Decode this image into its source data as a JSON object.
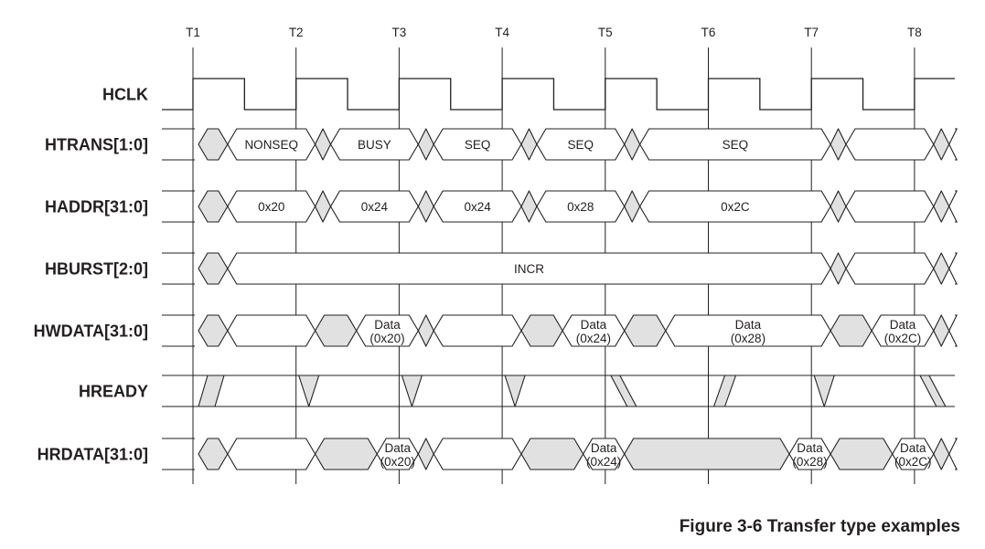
{
  "figure": {
    "caption": "Figure 3-6 Transfer type examples",
    "clock_edges": [
      "T1",
      "T2",
      "T3",
      "T4",
      "T5",
      "T6",
      "T7",
      "T8"
    ],
    "colors": {
      "line": "#231f20",
      "shade": "#e1e1e1",
      "background": "#ffffff"
    }
  },
  "signals": [
    {
      "id": "hclk",
      "name": "HCLK",
      "kind": "clock",
      "periods": 7.4
    },
    {
      "id": "htrans",
      "name": "HTRANS[1:0]",
      "kind": "bus",
      "segments": [
        {
          "from": 0,
          "to": 0.3,
          "fill": "shaded"
        },
        {
          "from": 0.3,
          "to": 1.15,
          "fill": "open",
          "text": "NONSEQ"
        },
        {
          "from": 1.15,
          "to": 1.3,
          "fill": "shaded"
        },
        {
          "from": 1.3,
          "to": 2.15,
          "fill": "open",
          "text": "BUSY"
        },
        {
          "from": 2.15,
          "to": 2.3,
          "fill": "shaded"
        },
        {
          "from": 2.3,
          "to": 3.15,
          "fill": "open",
          "text": "SEQ"
        },
        {
          "from": 3.15,
          "to": 3.3,
          "fill": "shaded"
        },
        {
          "from": 3.3,
          "to": 4.15,
          "fill": "open",
          "text": "SEQ"
        },
        {
          "from": 4.15,
          "to": 4.3,
          "fill": "shaded"
        },
        {
          "from": 4.3,
          "to": 6.15,
          "fill": "open",
          "text": "SEQ"
        },
        {
          "from": 6.15,
          "to": 6.3,
          "fill": "shaded"
        },
        {
          "from": 6.3,
          "to": 7.15,
          "fill": "open"
        },
        {
          "from": 7.15,
          "to": 7.3,
          "fill": "shaded"
        }
      ]
    },
    {
      "id": "haddr",
      "name": "HADDR[31:0]",
      "kind": "bus",
      "segments": [
        {
          "from": 0,
          "to": 0.3,
          "fill": "shaded"
        },
        {
          "from": 0.3,
          "to": 1.15,
          "fill": "open",
          "text": "0x20"
        },
        {
          "from": 1.15,
          "to": 1.3,
          "fill": "shaded"
        },
        {
          "from": 1.3,
          "to": 2.15,
          "fill": "open",
          "text": "0x24"
        },
        {
          "from": 2.15,
          "to": 2.3,
          "fill": "shaded"
        },
        {
          "from": 2.3,
          "to": 3.15,
          "fill": "open",
          "text": "0x24"
        },
        {
          "from": 3.15,
          "to": 3.3,
          "fill": "shaded"
        },
        {
          "from": 3.3,
          "to": 4.15,
          "fill": "open",
          "text": "0x28"
        },
        {
          "from": 4.15,
          "to": 4.3,
          "fill": "shaded"
        },
        {
          "from": 4.3,
          "to": 6.15,
          "fill": "open",
          "text": "0x2C"
        },
        {
          "from": 6.15,
          "to": 6.3,
          "fill": "shaded"
        },
        {
          "from": 6.3,
          "to": 7.15,
          "fill": "open"
        },
        {
          "from": 7.15,
          "to": 7.3,
          "fill": "shaded"
        }
      ]
    },
    {
      "id": "hburst",
      "name": "HBURST[2:0]",
      "kind": "bus",
      "segments": [
        {
          "from": 0,
          "to": 0.3,
          "fill": "shaded"
        },
        {
          "from": 0.3,
          "to": 6.15,
          "fill": "open",
          "text": "INCR"
        },
        {
          "from": 6.15,
          "to": 6.3,
          "fill": "shaded"
        },
        {
          "from": 6.3,
          "to": 7.15,
          "fill": "open"
        },
        {
          "from": 7.15,
          "to": 7.3,
          "fill": "shaded"
        }
      ]
    },
    {
      "id": "hwdata",
      "name": "HWDATA[31:0]",
      "kind": "bus",
      "segments": [
        {
          "from": 0,
          "to": 0.3,
          "fill": "shaded"
        },
        {
          "from": 0.3,
          "to": 1.15,
          "fill": "open"
        },
        {
          "from": 1.15,
          "to": 1.55,
          "fill": "shaded"
        },
        {
          "from": 1.55,
          "to": 2.15,
          "fill": "open",
          "text": "Data",
          "text2": "(0x20)"
        },
        {
          "from": 2.15,
          "to": 2.3,
          "fill": "shaded"
        },
        {
          "from": 2.3,
          "to": 3.15,
          "fill": "open"
        },
        {
          "from": 3.15,
          "to": 3.55,
          "fill": "shaded"
        },
        {
          "from": 3.55,
          "to": 4.15,
          "fill": "open",
          "text": "Data",
          "text2": "(0x24)"
        },
        {
          "from": 4.15,
          "to": 4.55,
          "fill": "shaded"
        },
        {
          "from": 4.55,
          "to": 6.15,
          "fill": "open",
          "text": "Data",
          "text2": "(0x28)"
        },
        {
          "from": 6.15,
          "to": 6.55,
          "fill": "shaded"
        },
        {
          "from": 6.55,
          "to": 7.15,
          "fill": "open",
          "text": "Data",
          "text2": "(0x2C)"
        },
        {
          "from": 7.15,
          "to": 7.3,
          "fill": "shaded"
        }
      ]
    },
    {
      "id": "hready",
      "name": "HREADY",
      "kind": "ready"
    },
    {
      "id": "hrdata",
      "name": "HRDATA[31:0]",
      "kind": "bus",
      "segments": [
        {
          "from": 0,
          "to": 0.3,
          "fill": "shaded"
        },
        {
          "from": 0.3,
          "to": 1.15,
          "fill": "open"
        },
        {
          "from": 1.15,
          "to": 1.75,
          "fill": "shaded"
        },
        {
          "from": 1.75,
          "to": 2.15,
          "fill": "open",
          "text": "Data",
          "text2": "(0x20)"
        },
        {
          "from": 2.15,
          "to": 2.3,
          "fill": "shaded"
        },
        {
          "from": 2.3,
          "to": 3.15,
          "fill": "open"
        },
        {
          "from": 3.15,
          "to": 3.75,
          "fill": "shaded"
        },
        {
          "from": 3.75,
          "to": 4.15,
          "fill": "open",
          "text": "Data",
          "text2": "(0x24)"
        },
        {
          "from": 4.15,
          "to": 5.75,
          "fill": "shaded"
        },
        {
          "from": 5.75,
          "to": 6.15,
          "fill": "open",
          "text": "Data",
          "text2": "(0x28)"
        },
        {
          "from": 6.15,
          "to": 6.75,
          "fill": "shaded"
        },
        {
          "from": 6.75,
          "to": 7.15,
          "fill": "open",
          "text": "Data",
          "text2": "(0x2C)"
        },
        {
          "from": 7.15,
          "to": 7.3,
          "fill": "shaded"
        }
      ]
    }
  ]
}
